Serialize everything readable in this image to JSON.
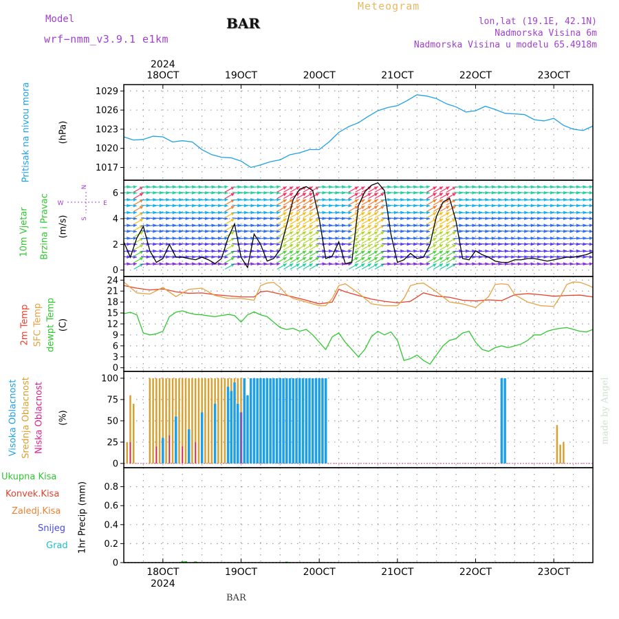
{
  "header": {
    "model_label": "Model",
    "model_name": "wrf−nmm_v3.9.1  e1km",
    "station": "BAR",
    "product": "Meteogram",
    "lonlat": "lon,lat (19.1E, 42.1N)",
    "elevation": "Nadmorska Visina 6m",
    "model_elevation": "Nadmorska Visina u modelu 65.4918m"
  },
  "footer": {
    "station": "BAR",
    "watermark": "made by Angel"
  },
  "colors": {
    "pressure": "#1ea0e6",
    "temp2m": "#e8402a",
    "sfc": "#e8a040",
    "dewpt": "#2ec82e",
    "high_cloud": "#1ea0e6",
    "mid_cloud": "#d8a030",
    "low_cloud": "#e0208a",
    "total_precip": "#2ec82e",
    "conv_precip": "#e8402a",
    "frz_precip": "#f08030",
    "snow": "#4848e8",
    "graupel": "#20c0c0",
    "wind_label": "#2ec82e",
    "model_text": "#a040d0",
    "product_text": "#e8b860"
  },
  "time_axis": {
    "year": "2024",
    "labels": [
      "18OCT",
      "19OCT",
      "20OCT",
      "21OCT",
      "22OCT",
      "23OCT"
    ],
    "start_hour": 0,
    "end_hour": 144
  },
  "panels": {
    "pressure": {
      "label_main": "Pritisak na nivou mora",
      "unit": "(hPa)"
    },
    "wind": {
      "label_main": "10m Vjetar",
      "label_sub": "Brzina i Pravac",
      "unit": "(m/s)",
      "compass": {
        "n": "N",
        "s": "S",
        "e": "E",
        "w": "W"
      }
    },
    "temp": {
      "labels": [
        "2m Temp",
        "SFC Temp",
        "dewpt Temp"
      ],
      "unit": "(C)"
    },
    "cloud": {
      "labels": [
        "Visoka Oblacnost",
        "Srednja Oblacnost",
        "Niska Oblacnost"
      ],
      "unit": "(%)"
    },
    "precip": {
      "legend": [
        "Ukupna Kisa",
        "Konvek.Kisa",
        "Zaledj.Kisa",
        "Snijeg",
        "Grad"
      ],
      "unit": "1hr Precip (mm)"
    }
  },
  "chart_data": [
    {
      "type": "line",
      "name": "pressure",
      "ylim": [
        1015,
        1030
      ],
      "yticks": [
        1017,
        1020,
        1023,
        1026,
        1029
      ],
      "x": [
        0,
        3,
        6,
        9,
        12,
        15,
        18,
        21,
        24,
        27,
        30,
        33,
        36,
        39,
        42,
        45,
        48,
        51,
        54,
        57,
        60,
        63,
        66,
        69,
        72,
        75,
        78,
        81,
        84,
        87,
        90,
        93,
        96,
        99,
        102,
        105,
        108,
        111,
        114,
        117,
        120,
        123,
        126,
        129,
        132,
        135,
        138,
        141,
        144
      ],
      "y": [
        1021.8,
        1021.3,
        1021.4,
        1021.9,
        1021.8,
        1021.0,
        1021.2,
        1021.0,
        1019.8,
        1019.0,
        1018.6,
        1018.5,
        1018.0,
        1017.0,
        1017.4,
        1017.9,
        1018.2,
        1019.0,
        1019.3,
        1019.8,
        1019.8,
        1021.0,
        1022.5,
        1023.4,
        1024.0,
        1025.0,
        1025.9,
        1026.4,
        1026.7,
        1027.5,
        1028.4,
        1028.2,
        1027.8,
        1027.0,
        1026.5,
        1025.7,
        1025.9,
        1026.6,
        1026.1,
        1025.5,
        1025.4,
        1025.3,
        1024.5,
        1024.3,
        1024.7,
        1023.6,
        1023.0,
        1022.8,
        1023.5
      ]
    },
    {
      "type": "line",
      "name": "wind_speed",
      "ylim": [
        -0.5,
        7
      ],
      "yticks": [
        0,
        2,
        4,
        6
      ],
      "x": [
        0,
        2,
        4,
        6,
        8,
        10,
        12,
        14,
        16,
        18,
        20,
        22,
        24,
        26,
        28,
        30,
        32,
        34,
        36,
        38,
        40,
        42,
        44,
        46,
        48,
        50,
        52,
        54,
        56,
        58,
        60,
        62,
        64,
        66,
        68,
        70,
        72,
        74,
        76,
        78,
        80,
        82,
        84,
        86,
        88,
        90,
        92,
        94,
        96,
        98,
        100,
        102,
        104,
        106,
        108,
        110,
        112,
        114,
        116,
        118,
        120,
        122,
        124,
        126,
        128,
        130,
        132,
        134,
        136,
        138,
        140,
        142,
        144
      ],
      "y": [
        2.2,
        1.0,
        2.5,
        3.4,
        1.5,
        0.6,
        0.9,
        2.0,
        1.0,
        1.0,
        0.9,
        0.8,
        1.0,
        0.8,
        0.5,
        0.9,
        2.5,
        3.6,
        1.0,
        0.2,
        2.8,
        2.0,
        0.7,
        0.9,
        1.6,
        3.5,
        5.5,
        6.3,
        6.5,
        6.2,
        4.0,
        0.9,
        1.1,
        2.2,
        0.5,
        0.6,
        5.0,
        6.1,
        6.6,
        6.8,
        6.2,
        2.8,
        0.6,
        0.8,
        1.3,
        0.9,
        1.0,
        2.0,
        4.2,
        5.3,
        5.6,
        3.8,
        0.9,
        0.8,
        1.5,
        1.2,
        1.0,
        0.7,
        0.6,
        0.6,
        0.8,
        0.8,
        0.9,
        0.9,
        0.8,
        0.7,
        0.8,
        0.9,
        1.0,
        1.0,
        1.1,
        1.2,
        1.4
      ]
    },
    {
      "type": "line",
      "name": "temperature",
      "ylim": [
        -1,
        25
      ],
      "yticks": [
        0,
        3,
        6,
        9,
        12,
        15,
        18,
        21,
        24
      ],
      "series": [
        {
          "name": "2m Temp",
          "x": [
            0,
            4,
            8,
            12,
            16,
            20,
            24,
            28,
            32,
            36,
            40,
            42,
            44,
            46,
            48,
            52,
            56,
            60,
            64,
            66,
            68,
            72,
            76,
            80,
            84,
            88,
            92,
            96,
            100,
            104,
            108,
            112,
            116,
            120,
            124,
            128,
            132,
            136,
            140,
            144
          ],
          "y": [
            22.5,
            21.8,
            21.3,
            21.6,
            20.8,
            20.4,
            20.5,
            20.0,
            19.7,
            19.4,
            19.4,
            20.8,
            21.0,
            20.6,
            20.2,
            19.4,
            18.5,
            17.5,
            18.0,
            21.5,
            20.8,
            19.8,
            18.8,
            18.2,
            17.8,
            18.2,
            20.5,
            19.6,
            19.3,
            18.5,
            18.3,
            18.6,
            18.4,
            20.0,
            20.3,
            20.0,
            19.6,
            19.8,
            19.9,
            19.4
          ]
        },
        {
          "name": "SFC Temp",
          "x": [
            0,
            4,
            8,
            12,
            16,
            20,
            24,
            28,
            32,
            36,
            40,
            42,
            44,
            46,
            48,
            50,
            52,
            56,
            60,
            62,
            64,
            66,
            68,
            72,
            76,
            80,
            84,
            86,
            88,
            90,
            92,
            96,
            100,
            104,
            108,
            112,
            114,
            116,
            118,
            120,
            124,
            128,
            132,
            134,
            136,
            138,
            140,
            142,
            144
          ],
          "y": [
            23.5,
            20.5,
            20.2,
            22.0,
            19.5,
            21.5,
            21.8,
            19.8,
            19.0,
            19.0,
            18.5,
            22.5,
            23.2,
            23.4,
            22.0,
            20.0,
            19.0,
            18.0,
            17.0,
            17.0,
            19.0,
            22.5,
            23.0,
            20.5,
            17.5,
            17.0,
            17.0,
            19.0,
            22.5,
            23.0,
            23.2,
            20.8,
            18.0,
            17.5,
            16.5,
            19.5,
            22.8,
            23.0,
            22.8,
            20.0,
            18.0,
            17.0,
            16.8,
            19.5,
            22.8,
            23.5,
            23.4,
            22.8,
            22.0
          ]
        },
        {
          "name": "dewpt Temp",
          "x": [
            0,
            2,
            4,
            6,
            8,
            10,
            12,
            14,
            16,
            18,
            20,
            22,
            24,
            26,
            28,
            30,
            32,
            34,
            36,
            38,
            40,
            42,
            44,
            46,
            48,
            50,
            52,
            54,
            56,
            58,
            60,
            62,
            64,
            66,
            68,
            70,
            72,
            74,
            76,
            78,
            80,
            82,
            84,
            86,
            88,
            90,
            92,
            94,
            96,
            98,
            100,
            102,
            104,
            106,
            108,
            110,
            112,
            114,
            116,
            118,
            120,
            122,
            124,
            126,
            128,
            130,
            132,
            134,
            136,
            138,
            140,
            142,
            144
          ],
          "y": [
            14.8,
            15.2,
            14.5,
            9.5,
            9.0,
            9.3,
            10.0,
            14.0,
            15.2,
            15.6,
            15.0,
            14.6,
            14.5,
            14.2,
            14.0,
            14.3,
            14.6,
            14.3,
            12.5,
            14.5,
            15.3,
            14.5,
            14.0,
            12.5,
            11.0,
            10.5,
            10.8,
            10.0,
            10.5,
            9.0,
            7.0,
            5.0,
            8.5,
            9.5,
            7.0,
            5.0,
            3.0,
            5.0,
            8.5,
            10.0,
            9.0,
            9.8,
            7.5,
            2.0,
            2.5,
            3.5,
            2.0,
            1.0,
            3.5,
            6.0,
            7.5,
            8.0,
            9.5,
            10.0,
            7.0,
            5.0,
            4.5,
            5.5,
            6.0,
            5.5,
            6.0,
            6.5,
            7.5,
            9.0,
            9.0,
            10.0,
            10.5,
            10.8,
            11.0,
            10.5,
            10.0,
            9.8,
            10.5
          ]
        }
      ]
    },
    {
      "type": "bar",
      "name": "cloud_cover",
      "ylim": [
        -5,
        108
      ],
      "yticks": [
        0,
        25,
        50,
        75,
        100
      ],
      "series": [
        {
          "name": "Srednja Oblacnost",
          "x": [
            1,
            2,
            3,
            8,
            9,
            10,
            11,
            12,
            13,
            14,
            15,
            16,
            17,
            18,
            19,
            20,
            21,
            22,
            23,
            24,
            25,
            26,
            27,
            28,
            29,
            30,
            31,
            32,
            33,
            34,
            35,
            36,
            37,
            38,
            39,
            40,
            41,
            42,
            43,
            44,
            45,
            46,
            47,
            48,
            49,
            50,
            133,
            134,
            135
          ],
          "y": [
            25,
            80,
            70,
            100,
            100,
            100,
            100,
            100,
            100,
            100,
            100,
            100,
            100,
            100,
            100,
            100,
            100,
            100,
            100,
            100,
            100,
            100,
            100,
            100,
            100,
            100,
            100,
            100,
            100,
            100,
            100,
            100,
            50,
            35,
            25,
            20,
            15,
            10,
            20,
            30,
            25,
            30,
            40,
            20,
            10,
            15,
            45,
            22,
            25
          ]
        },
        {
          "name": "Visoka Oblacnost",
          "x": [
            12,
            16,
            20,
            24,
            28,
            32,
            33,
            34,
            35,
            36,
            37,
            38,
            39,
            40,
            41,
            42,
            43,
            44,
            45,
            46,
            47,
            48,
            49,
            50,
            51,
            52,
            53,
            54,
            55,
            56,
            57,
            58,
            59,
            60,
            61,
            62,
            116,
            117
          ],
          "y": [
            30,
            55,
            40,
            60,
            70,
            90,
            85,
            95,
            70,
            60,
            100,
            80,
            100,
            100,
            100,
            100,
            100,
            100,
            100,
            100,
            100,
            100,
            100,
            100,
            100,
            100,
            100,
            100,
            100,
            100,
            100,
            100,
            100,
            100,
            100,
            100,
            100,
            100
          ]
        },
        {
          "name": "Niska Oblacnost",
          "x": [
            2,
            10,
            14,
            18,
            22,
            36
          ],
          "y": [
            25,
            20,
            33,
            20,
            25,
            60
          ]
        }
      ]
    },
    {
      "type": "bar",
      "name": "precip_1hr",
      "ylim": [
        0,
        1.0
      ],
      "yticks": [
        0,
        0.2,
        0.4,
        0.6,
        0.8
      ],
      "series": [
        {
          "name": "Ukupna Kisa",
          "x": [
            18,
            19,
            22,
            50
          ],
          "y": [
            0.015,
            0.015,
            0.012,
            0.01
          ]
        }
      ]
    }
  ]
}
